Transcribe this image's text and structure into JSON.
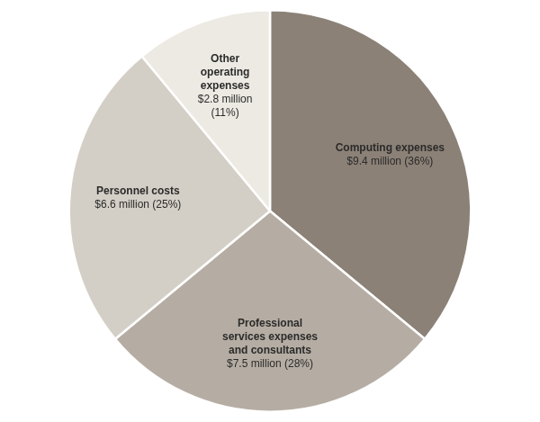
{
  "chart_data": {
    "type": "pie",
    "categories": [
      "Computing expenses",
      "Professional\nservices expenses\nand consultants",
      "Personnel costs",
      "Other\noperating\nexpenses"
    ],
    "values": [
      36,
      28,
      25,
      11
    ],
    "value_labels": [
      "$9.4 million (36%)",
      "$7.5 million (28%)",
      "$6.6 million (25%)",
      "$2.8 million\n(11%)"
    ],
    "colors": [
      "#8b8177",
      "#b5ada3",
      "#d4cfc6",
      "#edeae3"
    ],
    "data_labels": true
  }
}
